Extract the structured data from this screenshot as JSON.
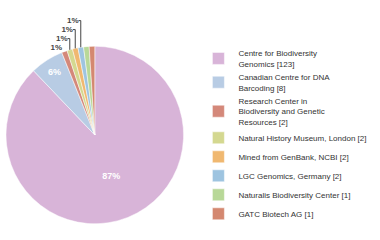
{
  "chart_data": {
    "type": "pie",
    "categories": [
      "Centre for Biodiversity\nGenomics [123]",
      "Canadian Centre for DNA\nBarcoding [8]",
      "Research Center in\nBiodiversity and Genetic\nResources [2]",
      "Natural History Museum, London [2]",
      "Mined from GenBank, NCBI [2]",
      "LGC Genomics, Germany [2]",
      "Naturalis Biodiversity Center [1]",
      "GATC Biotech AG [1]"
    ],
    "values": [
      87,
      6,
      1,
      1,
      1,
      1,
      1,
      1
    ],
    "value_labels": [
      "87%",
      "6%",
      "1%",
      "1%",
      "1%",
      "1%",
      null,
      null
    ],
    "colors": [
      "#d8b4d8",
      "#b8cce4",
      "#d4887a",
      "#d4d890",
      "#f0b870",
      "#9ec4e0",
      "#b8d898",
      "#d48870"
    ],
    "data_labels": true,
    "legend": "right"
  }
}
